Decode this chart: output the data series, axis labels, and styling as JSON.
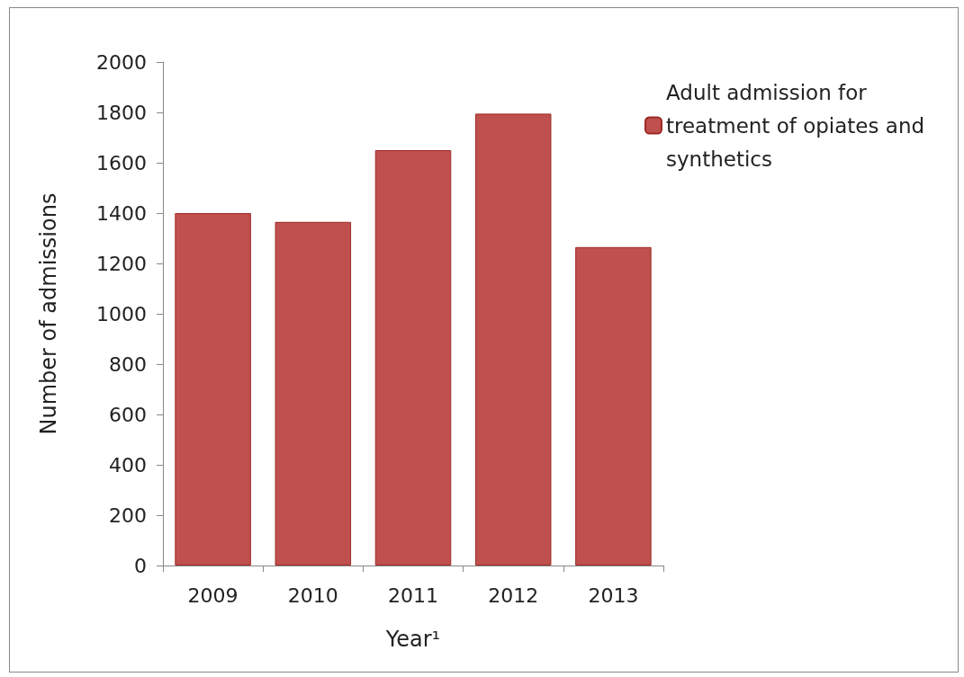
{
  "chart_data": {
    "type": "bar",
    "xlabel": "Year¹",
    "ylabel": "Number of admissions",
    "categories": [
      "2009",
      "2010",
      "2011",
      "2012",
      "2013"
    ],
    "series": [
      {
        "name": "Adult admission for treatment of opiates and synthetics",
        "color": "#c0504d",
        "values": [
          1400,
          1365,
          1650,
          1795,
          1265
        ]
      }
    ],
    "ylim": [
      0,
      2000
    ],
    "yticks": [
      0,
      200,
      400,
      600,
      800,
      1000,
      1200,
      1400,
      1600,
      1800,
      2000
    ],
    "grid": false,
    "legend": "top right"
  }
}
